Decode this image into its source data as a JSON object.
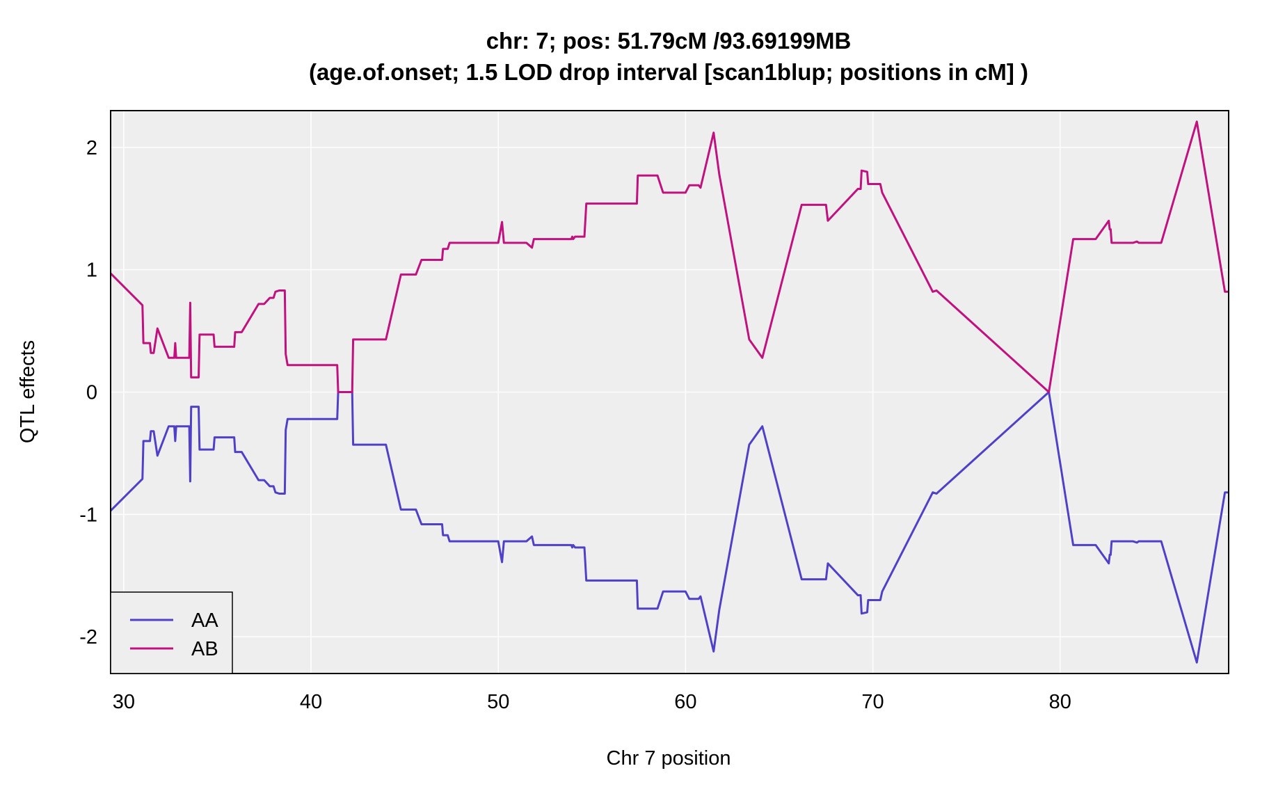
{
  "chart_data": {
    "type": "line",
    "title": "chr: 7; pos: 51.79cM /93.69199MB",
    "subtitle": "(age.of.onset; 1.5 LOD drop interval [scan1blup; positions in cM] )",
    "xlabel": "Chr 7 position",
    "ylabel": "QTL effects",
    "xlim": [
      29.3,
      89.0
    ],
    "ylim": [
      -2.3,
      2.3
    ],
    "x_ticks": [
      30,
      40,
      50,
      60,
      70,
      80
    ],
    "y_ticks": [
      -2,
      -1,
      0,
      1,
      2
    ],
    "x_tick_labels": [
      "30",
      "40",
      "50",
      "60",
      "70",
      "80"
    ],
    "y_tick_labels": [
      "-2",
      "-1",
      "0",
      "1",
      "2"
    ],
    "grid": true,
    "legend_position": "bottom-left",
    "series": [
      {
        "name": "AA",
        "color": "#4f40c8",
        "points": [
          [
            29.3,
            -0.97
          ],
          [
            31.0,
            -0.71
          ],
          [
            31.05,
            -0.4
          ],
          [
            31.4,
            -0.4
          ],
          [
            31.45,
            -0.32
          ],
          [
            31.6,
            -0.32
          ],
          [
            31.8,
            -0.52
          ],
          [
            32.4,
            -0.28
          ],
          [
            32.7,
            -0.28
          ],
          [
            32.75,
            -0.4
          ],
          [
            32.8,
            -0.28
          ],
          [
            33.5,
            -0.28
          ],
          [
            33.55,
            -0.73
          ],
          [
            33.6,
            -0.12
          ],
          [
            34.0,
            -0.12
          ],
          [
            34.05,
            -0.47
          ],
          [
            34.8,
            -0.47
          ],
          [
            34.85,
            -0.37
          ],
          [
            35.9,
            -0.37
          ],
          [
            35.95,
            -0.49
          ],
          [
            36.3,
            -0.49
          ],
          [
            37.2,
            -0.72
          ],
          [
            37.5,
            -0.72
          ],
          [
            37.8,
            -0.77
          ],
          [
            38.0,
            -0.77
          ],
          [
            38.1,
            -0.82
          ],
          [
            38.3,
            -0.83
          ],
          [
            38.6,
            -0.83
          ],
          [
            38.65,
            -0.31
          ],
          [
            38.75,
            -0.22
          ],
          [
            41.4,
            -0.22
          ],
          [
            41.45,
            0.0
          ],
          [
            42.2,
            0.0
          ],
          [
            42.25,
            -0.43
          ],
          [
            44.0,
            -0.43
          ],
          [
            44.8,
            -0.96
          ],
          [
            45.6,
            -0.96
          ],
          [
            45.9,
            -1.08
          ],
          [
            47.0,
            -1.08
          ],
          [
            47.05,
            -1.17
          ],
          [
            47.3,
            -1.17
          ],
          [
            47.4,
            -1.22
          ],
          [
            50.0,
            -1.22
          ],
          [
            50.2,
            -1.39
          ],
          [
            50.3,
            -1.22
          ],
          [
            51.5,
            -1.22
          ],
          [
            51.8,
            -1.18
          ],
          [
            51.9,
            -1.25
          ],
          [
            53.9,
            -1.25
          ],
          [
            53.95,
            -1.27
          ],
          [
            54.0,
            -1.25
          ],
          [
            54.1,
            -1.27
          ],
          [
            54.6,
            -1.27
          ],
          [
            54.7,
            -1.54
          ],
          [
            55.8,
            -1.54
          ],
          [
            57.4,
            -1.54
          ],
          [
            57.45,
            -1.77
          ],
          [
            58.5,
            -1.77
          ],
          [
            58.8,
            -1.63
          ],
          [
            60.0,
            -1.63
          ],
          [
            60.2,
            -1.69
          ],
          [
            60.7,
            -1.69
          ],
          [
            60.8,
            -1.67
          ],
          [
            61.5,
            -2.12
          ],
          [
            61.8,
            -1.78
          ],
          [
            63.4,
            -0.43
          ],
          [
            64.1,
            -0.28
          ],
          [
            66.2,
            -1.53
          ],
          [
            67.1,
            -1.53
          ],
          [
            67.3,
            -1.53
          ],
          [
            67.5,
            -1.53
          ],
          [
            67.6,
            -1.4
          ],
          [
            69.2,
            -1.66
          ],
          [
            69.35,
            -1.66
          ],
          [
            69.4,
            -1.81
          ],
          [
            69.7,
            -1.8
          ],
          [
            69.75,
            -1.7
          ],
          [
            70.4,
            -1.7
          ],
          [
            70.5,
            -1.63
          ],
          [
            73.2,
            -0.82
          ],
          [
            73.4,
            -0.83
          ],
          [
            79.4,
            0.0
          ],
          [
            80.7,
            -1.25
          ],
          [
            81.9,
            -1.25
          ],
          [
            82.6,
            -1.4
          ],
          [
            82.65,
            -1.33
          ],
          [
            82.7,
            -1.33
          ],
          [
            82.75,
            -1.22
          ],
          [
            83.9,
            -1.22
          ],
          [
            84.1,
            -1.23
          ],
          [
            84.2,
            -1.22
          ],
          [
            85.4,
            -1.22
          ],
          [
            87.3,
            -2.21
          ],
          [
            88.8,
            -0.82
          ],
          [
            89.0,
            -0.82
          ]
        ]
      },
      {
        "name": "AB",
        "color": "#c0117f",
        "points": [
          [
            29.3,
            0.97
          ],
          [
            31.0,
            0.71
          ],
          [
            31.05,
            0.4
          ],
          [
            31.4,
            0.4
          ],
          [
            31.45,
            0.32
          ],
          [
            31.6,
            0.32
          ],
          [
            31.8,
            0.52
          ],
          [
            32.4,
            0.28
          ],
          [
            32.7,
            0.28
          ],
          [
            32.75,
            0.4
          ],
          [
            32.8,
            0.28
          ],
          [
            33.5,
            0.28
          ],
          [
            33.55,
            0.73
          ],
          [
            33.6,
            0.12
          ],
          [
            34.0,
            0.12
          ],
          [
            34.05,
            0.47
          ],
          [
            34.8,
            0.47
          ],
          [
            34.85,
            0.37
          ],
          [
            35.9,
            0.37
          ],
          [
            35.95,
            0.49
          ],
          [
            36.3,
            0.49
          ],
          [
            37.2,
            0.72
          ],
          [
            37.5,
            0.72
          ],
          [
            37.8,
            0.77
          ],
          [
            38.0,
            0.77
          ],
          [
            38.1,
            0.82
          ],
          [
            38.3,
            0.83
          ],
          [
            38.6,
            0.83
          ],
          [
            38.65,
            0.31
          ],
          [
            38.75,
            0.22
          ],
          [
            41.4,
            0.22
          ],
          [
            41.45,
            0.0
          ],
          [
            42.2,
            0.0
          ],
          [
            42.25,
            0.43
          ],
          [
            44.0,
            0.43
          ],
          [
            44.8,
            0.96
          ],
          [
            45.6,
            0.96
          ],
          [
            45.9,
            1.08
          ],
          [
            47.0,
            1.08
          ],
          [
            47.05,
            1.17
          ],
          [
            47.3,
            1.17
          ],
          [
            47.4,
            1.22
          ],
          [
            50.0,
            1.22
          ],
          [
            50.2,
            1.39
          ],
          [
            50.3,
            1.22
          ],
          [
            51.5,
            1.22
          ],
          [
            51.8,
            1.18
          ],
          [
            51.9,
            1.25
          ],
          [
            53.9,
            1.25
          ],
          [
            53.95,
            1.27
          ],
          [
            54.0,
            1.25
          ],
          [
            54.1,
            1.27
          ],
          [
            54.6,
            1.27
          ],
          [
            54.7,
            1.54
          ],
          [
            55.8,
            1.54
          ],
          [
            57.4,
            1.54
          ],
          [
            57.45,
            1.77
          ],
          [
            58.5,
            1.77
          ],
          [
            58.8,
            1.63
          ],
          [
            60.0,
            1.63
          ],
          [
            60.2,
            1.69
          ],
          [
            60.7,
            1.69
          ],
          [
            60.8,
            1.67
          ],
          [
            61.5,
            2.12
          ],
          [
            61.8,
            1.78
          ],
          [
            63.4,
            0.43
          ],
          [
            64.1,
            0.28
          ],
          [
            66.2,
            1.53
          ],
          [
            67.1,
            1.53
          ],
          [
            67.3,
            1.53
          ],
          [
            67.5,
            1.53
          ],
          [
            67.6,
            1.4
          ],
          [
            69.2,
            1.66
          ],
          [
            69.35,
            1.66
          ],
          [
            69.4,
            1.81
          ],
          [
            69.7,
            1.8
          ],
          [
            69.75,
            1.7
          ],
          [
            70.4,
            1.7
          ],
          [
            70.5,
            1.63
          ],
          [
            73.2,
            0.82
          ],
          [
            73.4,
            0.83
          ],
          [
            79.4,
            0.0
          ],
          [
            80.7,
            1.25
          ],
          [
            81.9,
            1.25
          ],
          [
            82.6,
            1.4
          ],
          [
            82.65,
            1.33
          ],
          [
            82.7,
            1.33
          ],
          [
            82.75,
            1.22
          ],
          [
            83.9,
            1.22
          ],
          [
            84.1,
            1.23
          ],
          [
            84.2,
            1.22
          ],
          [
            85.4,
            1.22
          ],
          [
            87.3,
            2.21
          ],
          [
            88.8,
            0.82
          ],
          [
            89.0,
            0.82
          ]
        ]
      }
    ],
    "plot_background": "#efeeef",
    "grid_color": "#ffffff"
  }
}
